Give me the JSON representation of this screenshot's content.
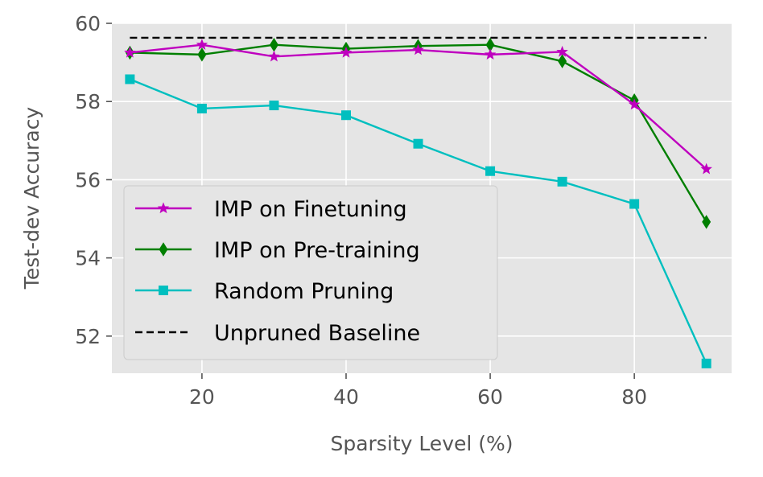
{
  "chart_data": {
    "type": "line",
    "xlabel": "Sparsity Level (%)",
    "ylabel": "Test-dev Accuracy",
    "xlim": [
      7.5,
      93.5
    ],
    "ylim": [
      51.05,
      60.0
    ],
    "xticks": [
      20,
      40,
      60,
      80
    ],
    "yticks": [
      52,
      54,
      56,
      58,
      60
    ],
    "grid": true,
    "legend_position": "lower-left",
    "series": [
      {
        "name": "IMP on Finetuning",
        "color": "#bf00bf",
        "marker": "star",
        "dash": "solid",
        "x": [
          10,
          20,
          30,
          40,
          50,
          60,
          70,
          80,
          90
        ],
        "values": [
          59.25,
          59.45,
          59.15,
          59.25,
          59.32,
          59.2,
          59.27,
          57.92,
          56.27
        ]
      },
      {
        "name": "IMP on Pre-training",
        "color": "#007f00",
        "marker": "diamond",
        "dash": "solid",
        "x": [
          10,
          20,
          30,
          40,
          50,
          60,
          70,
          80,
          90
        ],
        "values": [
          59.25,
          59.2,
          59.45,
          59.35,
          59.42,
          59.45,
          59.03,
          58.03,
          54.92
        ]
      },
      {
        "name": "Random Pruning",
        "color": "#00bfbf",
        "marker": "square",
        "dash": "solid",
        "x": [
          10,
          20,
          30,
          40,
          50,
          60,
          70,
          80,
          90
        ],
        "values": [
          58.57,
          57.82,
          57.9,
          57.65,
          56.92,
          56.22,
          55.95,
          55.38,
          51.3
        ]
      },
      {
        "name": "Unpruned Baseline",
        "color": "#000000",
        "marker": "none",
        "dash": "dashed",
        "x": [
          10,
          90
        ],
        "values": [
          59.63,
          59.63
        ]
      }
    ]
  }
}
